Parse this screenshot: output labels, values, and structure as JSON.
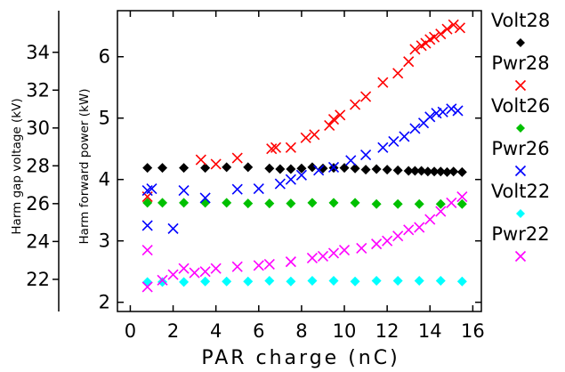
{
  "chart_data": {
    "type": "scatter",
    "title": "",
    "xlabel": "PAR charge (nC)",
    "ylabel": "Harm forward power (kW)",
    "y2label": "Harm gap voltage (kV)",
    "xlim": [
      -0.6,
      16.4
    ],
    "ylim": [
      1.85,
      6.75
    ],
    "y2lim": [
      20.3,
      36.2
    ],
    "xticks": [
      "0",
      "2",
      "4",
      "6",
      "8",
      "10",
      "12",
      "14",
      "16"
    ],
    "yticks": [
      "2",
      "3",
      "4",
      "5",
      "6"
    ],
    "y2ticks": [
      "22",
      "24",
      "26",
      "28",
      "30",
      "32",
      "34"
    ],
    "grid": false,
    "legend_position": "right",
    "legend": [
      {
        "name": "Volt28",
        "marker": "diamond",
        "color": "#000000"
      },
      {
        "name": "Pwr28",
        "marker": "x",
        "color": "#ff0000"
      },
      {
        "name": "Volt26",
        "marker": "diamond",
        "color": "#00c000"
      },
      {
        "name": "Pwr26",
        "marker": "x",
        "color": "#0000ff"
      },
      {
        "name": "Volt22",
        "marker": "diamond",
        "color": "#00ffff"
      },
      {
        "name": "Pwr22",
        "marker": "x",
        "color": "#ff00ff"
      }
    ],
    "series": [
      {
        "name": "Volt28",
        "marker": "diamond",
        "color": "#000000",
        "x": [
          0.8,
          1.5,
          2.5,
          3.5,
          4.5,
          5.5,
          6.5,
          7.0,
          7.5,
          8.0,
          8.5,
          9.0,
          9.5,
          10.0,
          10.5,
          11.0,
          11.5,
          12.0,
          12.5,
          13.0,
          13.3,
          13.6,
          13.9,
          14.2,
          14.5,
          14.8,
          15.1,
          15.5
        ],
        "y": [
          4.19,
          4.19,
          4.19,
          4.19,
          4.2,
          4.2,
          4.18,
          4.17,
          4.17,
          4.18,
          4.2,
          4.18,
          4.19,
          4.19,
          4.18,
          4.16,
          4.17,
          4.16,
          4.15,
          4.14,
          4.14,
          4.14,
          4.13,
          4.13,
          4.13,
          4.12,
          4.13,
          4.12
        ]
      },
      {
        "name": "Pwr28",
        "marker": "x",
        "color": "#ff0000",
        "x": [
          0.8,
          3.3,
          4.0,
          5.0,
          6.6,
          6.8,
          7.5,
          8.2,
          8.6,
          9.3,
          9.5,
          9.8,
          10.5,
          11.0,
          11.8,
          12.5,
          13.0,
          13.3,
          13.6,
          13.8,
          14.0,
          14.2,
          14.5,
          14.8,
          15.1,
          15.4
        ],
        "y": [
          3.72,
          4.32,
          4.25,
          4.35,
          4.5,
          4.52,
          4.52,
          4.68,
          4.73,
          4.88,
          4.98,
          5.05,
          5.22,
          5.35,
          5.58,
          5.73,
          5.92,
          6.12,
          6.18,
          6.22,
          6.28,
          6.32,
          6.37,
          6.45,
          6.52,
          6.47
        ]
      },
      {
        "name": "Volt26",
        "marker": "diamond",
        "color": "#00c000",
        "x": [
          0.8,
          1.5,
          2.5,
          3.5,
          4.5,
          5.5,
          6.5,
          7.5,
          8.5,
          9.5,
          10.5,
          11.5,
          12.5,
          13.5,
          14.5,
          15.5
        ],
        "y": [
          3.62,
          3.62,
          3.62,
          3.62,
          3.62,
          3.61,
          3.61,
          3.61,
          3.62,
          3.62,
          3.62,
          3.6,
          3.6,
          3.6,
          3.6,
          3.6
        ]
      },
      {
        "name": "Pwr26",
        "marker": "x",
        "color": "#0000ff",
        "x": [
          0.8,
          0.8,
          1.0,
          2.0,
          2.5,
          3.5,
          5.0,
          6.0,
          7.0,
          7.5,
          8.0,
          8.8,
          9.5,
          10.3,
          11.0,
          11.8,
          12.3,
          12.8,
          13.3,
          13.7,
          14.0,
          14.3,
          14.6,
          15.0,
          15.3
        ],
        "y": [
          3.25,
          3.82,
          3.85,
          3.2,
          3.82,
          3.7,
          3.84,
          3.85,
          3.93,
          4.0,
          4.07,
          4.15,
          4.2,
          4.31,
          4.4,
          4.52,
          4.62,
          4.7,
          4.83,
          4.92,
          5.02,
          5.08,
          5.1,
          5.15,
          5.12
        ]
      },
      {
        "name": "Volt22",
        "marker": "diamond",
        "color": "#00ffff",
        "x": [
          0.8,
          1.5,
          2.5,
          3.5,
          4.5,
          5.5,
          6.5,
          7.5,
          8.5,
          9.5,
          10.5,
          11.5,
          12.5,
          13.5,
          14.5,
          15.5
        ],
        "y": [
          2.33,
          2.33,
          2.33,
          2.34,
          2.34,
          2.34,
          2.35,
          2.34,
          2.35,
          2.35,
          2.34,
          2.35,
          2.35,
          2.35,
          2.35,
          2.34
        ]
      },
      {
        "name": "Pwr22",
        "marker": "x",
        "color": "#ff00ff",
        "x": [
          0.8,
          0.8,
          1.5,
          2.0,
          2.5,
          3.0,
          3.5,
          4.0,
          5.0,
          6.0,
          6.5,
          7.5,
          8.5,
          9.0,
          9.5,
          10.0,
          10.8,
          11.5,
          12.0,
          12.5,
          13.0,
          13.5,
          14.0,
          14.5,
          15.0,
          15.5
        ],
        "y": [
          2.25,
          2.85,
          2.36,
          2.45,
          2.55,
          2.48,
          2.5,
          2.55,
          2.58,
          2.6,
          2.62,
          2.66,
          2.72,
          2.75,
          2.8,
          2.85,
          2.88,
          2.95,
          3.0,
          3.08,
          3.18,
          3.22,
          3.35,
          3.48,
          3.62,
          3.72
        ]
      }
    ]
  }
}
